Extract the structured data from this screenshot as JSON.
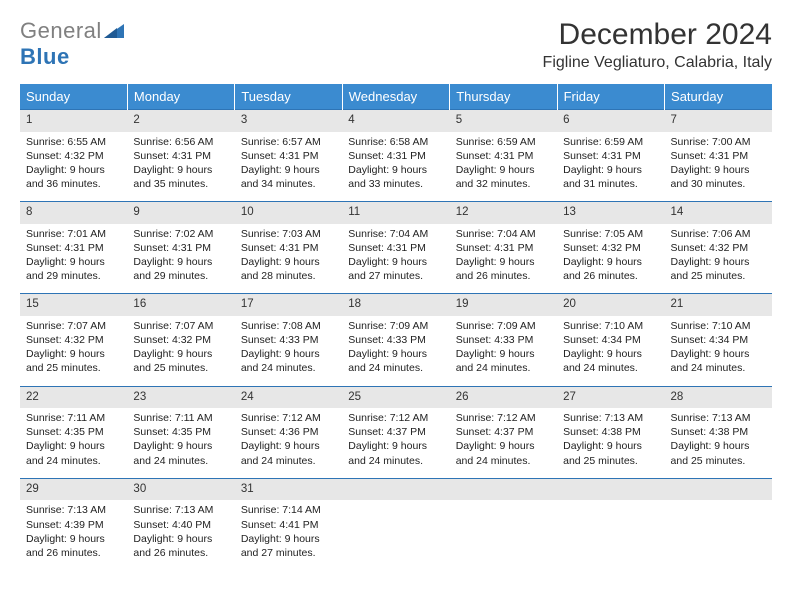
{
  "logo": {
    "text_gray": "General",
    "text_blue": "Blue"
  },
  "title": "December 2024",
  "location": "Figline Vegliaturo, Calabria, Italy",
  "colors": {
    "header_bg": "#3b8bd0",
    "header_text": "#ffffff",
    "daynum_bg": "#e7e7e7",
    "border": "#2e74b5",
    "logo_gray": "#808080",
    "logo_blue": "#2e74b5"
  },
  "weekdays": [
    "Sunday",
    "Monday",
    "Tuesday",
    "Wednesday",
    "Thursday",
    "Friday",
    "Saturday"
  ],
  "weeks": [
    [
      {
        "n": "1",
        "sr": "Sunrise: 6:55 AM",
        "ss": "Sunset: 4:32 PM",
        "d1": "Daylight: 9 hours",
        "d2": "and 36 minutes."
      },
      {
        "n": "2",
        "sr": "Sunrise: 6:56 AM",
        "ss": "Sunset: 4:31 PM",
        "d1": "Daylight: 9 hours",
        "d2": "and 35 minutes."
      },
      {
        "n": "3",
        "sr": "Sunrise: 6:57 AM",
        "ss": "Sunset: 4:31 PM",
        "d1": "Daylight: 9 hours",
        "d2": "and 34 minutes."
      },
      {
        "n": "4",
        "sr": "Sunrise: 6:58 AM",
        "ss": "Sunset: 4:31 PM",
        "d1": "Daylight: 9 hours",
        "d2": "and 33 minutes."
      },
      {
        "n": "5",
        "sr": "Sunrise: 6:59 AM",
        "ss": "Sunset: 4:31 PM",
        "d1": "Daylight: 9 hours",
        "d2": "and 32 minutes."
      },
      {
        "n": "6",
        "sr": "Sunrise: 6:59 AM",
        "ss": "Sunset: 4:31 PM",
        "d1": "Daylight: 9 hours",
        "d2": "and 31 minutes."
      },
      {
        "n": "7",
        "sr": "Sunrise: 7:00 AM",
        "ss": "Sunset: 4:31 PM",
        "d1": "Daylight: 9 hours",
        "d2": "and 30 minutes."
      }
    ],
    [
      {
        "n": "8",
        "sr": "Sunrise: 7:01 AM",
        "ss": "Sunset: 4:31 PM",
        "d1": "Daylight: 9 hours",
        "d2": "and 29 minutes."
      },
      {
        "n": "9",
        "sr": "Sunrise: 7:02 AM",
        "ss": "Sunset: 4:31 PM",
        "d1": "Daylight: 9 hours",
        "d2": "and 29 minutes."
      },
      {
        "n": "10",
        "sr": "Sunrise: 7:03 AM",
        "ss": "Sunset: 4:31 PM",
        "d1": "Daylight: 9 hours",
        "d2": "and 28 minutes."
      },
      {
        "n": "11",
        "sr": "Sunrise: 7:04 AM",
        "ss": "Sunset: 4:31 PM",
        "d1": "Daylight: 9 hours",
        "d2": "and 27 minutes."
      },
      {
        "n": "12",
        "sr": "Sunrise: 7:04 AM",
        "ss": "Sunset: 4:31 PM",
        "d1": "Daylight: 9 hours",
        "d2": "and 26 minutes."
      },
      {
        "n": "13",
        "sr": "Sunrise: 7:05 AM",
        "ss": "Sunset: 4:32 PM",
        "d1": "Daylight: 9 hours",
        "d2": "and 26 minutes."
      },
      {
        "n": "14",
        "sr": "Sunrise: 7:06 AM",
        "ss": "Sunset: 4:32 PM",
        "d1": "Daylight: 9 hours",
        "d2": "and 25 minutes."
      }
    ],
    [
      {
        "n": "15",
        "sr": "Sunrise: 7:07 AM",
        "ss": "Sunset: 4:32 PM",
        "d1": "Daylight: 9 hours",
        "d2": "and 25 minutes."
      },
      {
        "n": "16",
        "sr": "Sunrise: 7:07 AM",
        "ss": "Sunset: 4:32 PM",
        "d1": "Daylight: 9 hours",
        "d2": "and 25 minutes."
      },
      {
        "n": "17",
        "sr": "Sunrise: 7:08 AM",
        "ss": "Sunset: 4:33 PM",
        "d1": "Daylight: 9 hours",
        "d2": "and 24 minutes."
      },
      {
        "n": "18",
        "sr": "Sunrise: 7:09 AM",
        "ss": "Sunset: 4:33 PM",
        "d1": "Daylight: 9 hours",
        "d2": "and 24 minutes."
      },
      {
        "n": "19",
        "sr": "Sunrise: 7:09 AM",
        "ss": "Sunset: 4:33 PM",
        "d1": "Daylight: 9 hours",
        "d2": "and 24 minutes."
      },
      {
        "n": "20",
        "sr": "Sunrise: 7:10 AM",
        "ss": "Sunset: 4:34 PM",
        "d1": "Daylight: 9 hours",
        "d2": "and 24 minutes."
      },
      {
        "n": "21",
        "sr": "Sunrise: 7:10 AM",
        "ss": "Sunset: 4:34 PM",
        "d1": "Daylight: 9 hours",
        "d2": "and 24 minutes."
      }
    ],
    [
      {
        "n": "22",
        "sr": "Sunrise: 7:11 AM",
        "ss": "Sunset: 4:35 PM",
        "d1": "Daylight: 9 hours",
        "d2": "and 24 minutes."
      },
      {
        "n": "23",
        "sr": "Sunrise: 7:11 AM",
        "ss": "Sunset: 4:35 PM",
        "d1": "Daylight: 9 hours",
        "d2": "and 24 minutes."
      },
      {
        "n": "24",
        "sr": "Sunrise: 7:12 AM",
        "ss": "Sunset: 4:36 PM",
        "d1": "Daylight: 9 hours",
        "d2": "and 24 minutes."
      },
      {
        "n": "25",
        "sr": "Sunrise: 7:12 AM",
        "ss": "Sunset: 4:37 PM",
        "d1": "Daylight: 9 hours",
        "d2": "and 24 minutes."
      },
      {
        "n": "26",
        "sr": "Sunrise: 7:12 AM",
        "ss": "Sunset: 4:37 PM",
        "d1": "Daylight: 9 hours",
        "d2": "and 24 minutes."
      },
      {
        "n": "27",
        "sr": "Sunrise: 7:13 AM",
        "ss": "Sunset: 4:38 PM",
        "d1": "Daylight: 9 hours",
        "d2": "and 25 minutes."
      },
      {
        "n": "28",
        "sr": "Sunrise: 7:13 AM",
        "ss": "Sunset: 4:38 PM",
        "d1": "Daylight: 9 hours",
        "d2": "and 25 minutes."
      }
    ],
    [
      {
        "n": "29",
        "sr": "Sunrise: 7:13 AM",
        "ss": "Sunset: 4:39 PM",
        "d1": "Daylight: 9 hours",
        "d2": "and 26 minutes."
      },
      {
        "n": "30",
        "sr": "Sunrise: 7:13 AM",
        "ss": "Sunset: 4:40 PM",
        "d1": "Daylight: 9 hours",
        "d2": "and 26 minutes."
      },
      {
        "n": "31",
        "sr": "Sunrise: 7:14 AM",
        "ss": "Sunset: 4:41 PM",
        "d1": "Daylight: 9 hours",
        "d2": "and 27 minutes."
      },
      {
        "empty": true
      },
      {
        "empty": true
      },
      {
        "empty": true
      },
      {
        "empty": true
      }
    ]
  ]
}
